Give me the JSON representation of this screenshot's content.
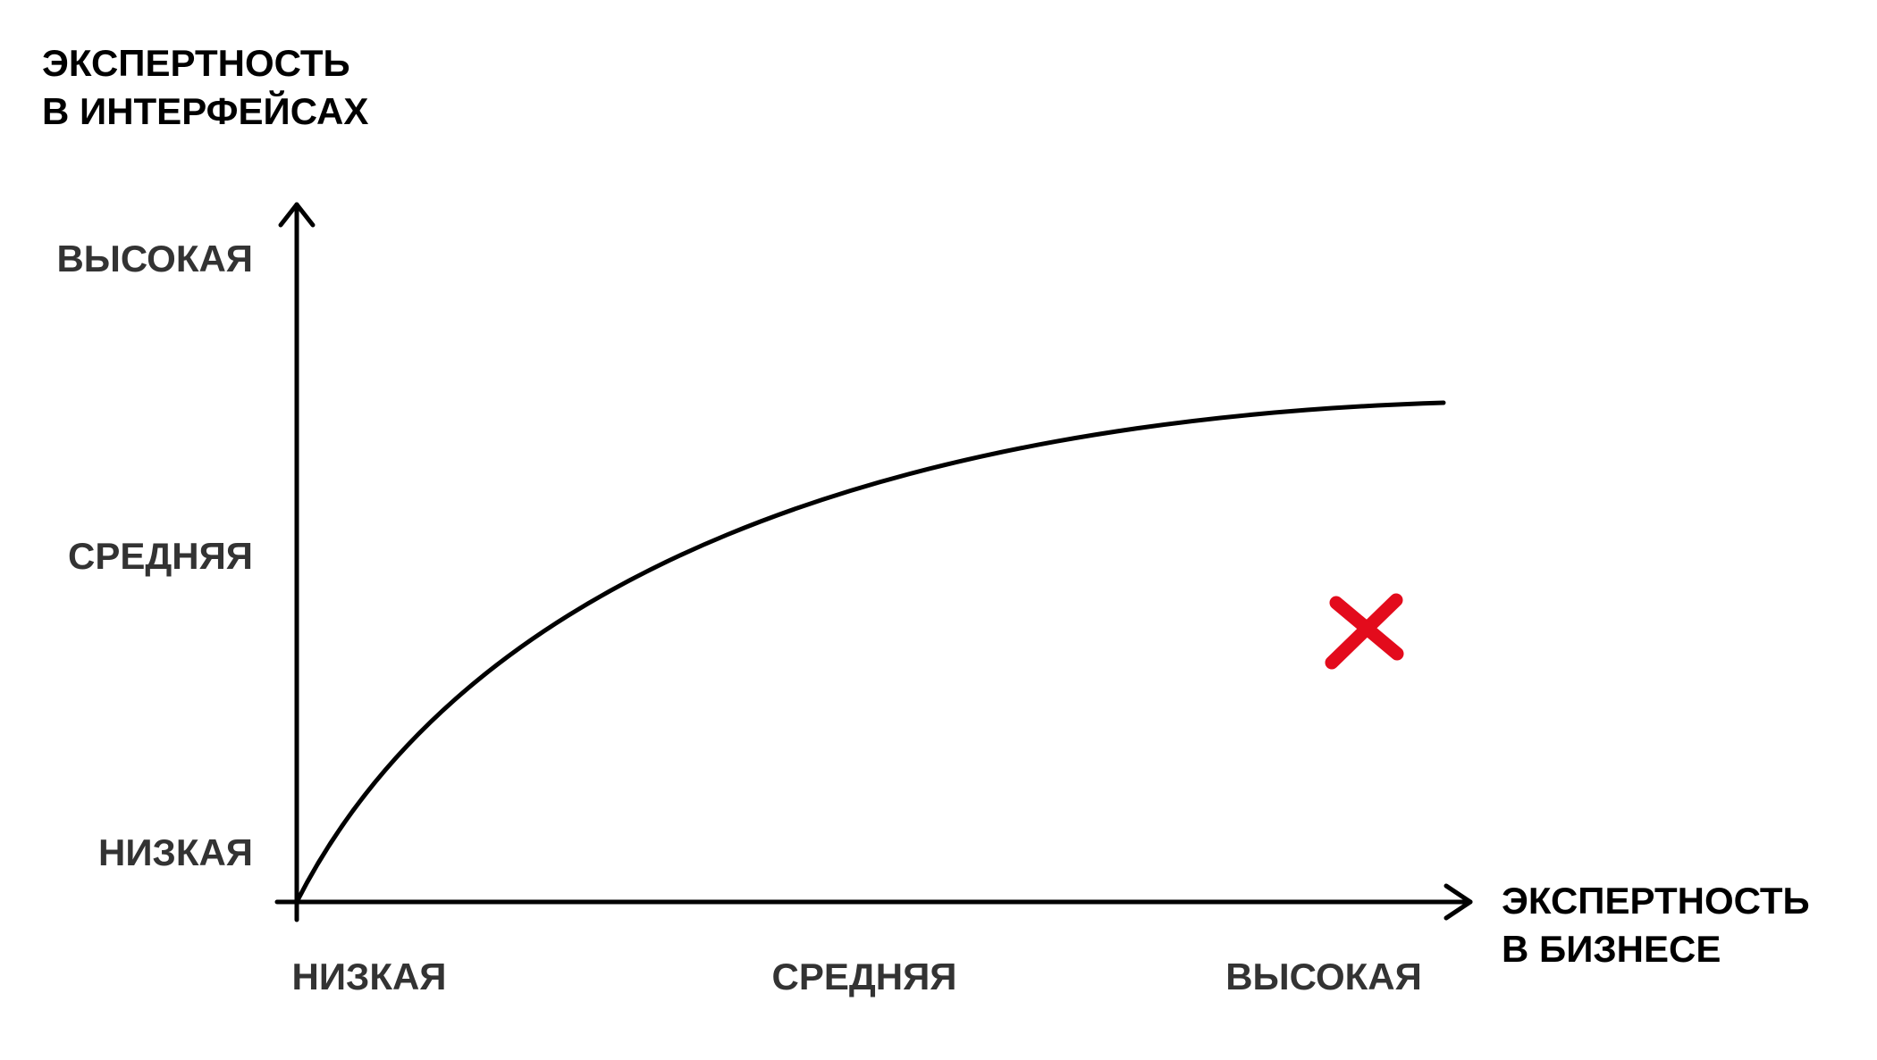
{
  "y_axis": {
    "title": [
      "ЭКСПЕРТНОСТЬ",
      "В ИНТЕРФЕЙСАХ"
    ],
    "levels": [
      "ВЫСОКАЯ",
      "СРЕДНЯЯ",
      "НИЗКАЯ"
    ]
  },
  "x_axis": {
    "title": [
      "ЭКСПЕРТНОСТЬ",
      "В БИЗНЕСЕ"
    ],
    "levels": [
      "НИЗКАЯ",
      "СРЕДНЯЯ",
      "ВЫСОКАЯ"
    ]
  }
}
